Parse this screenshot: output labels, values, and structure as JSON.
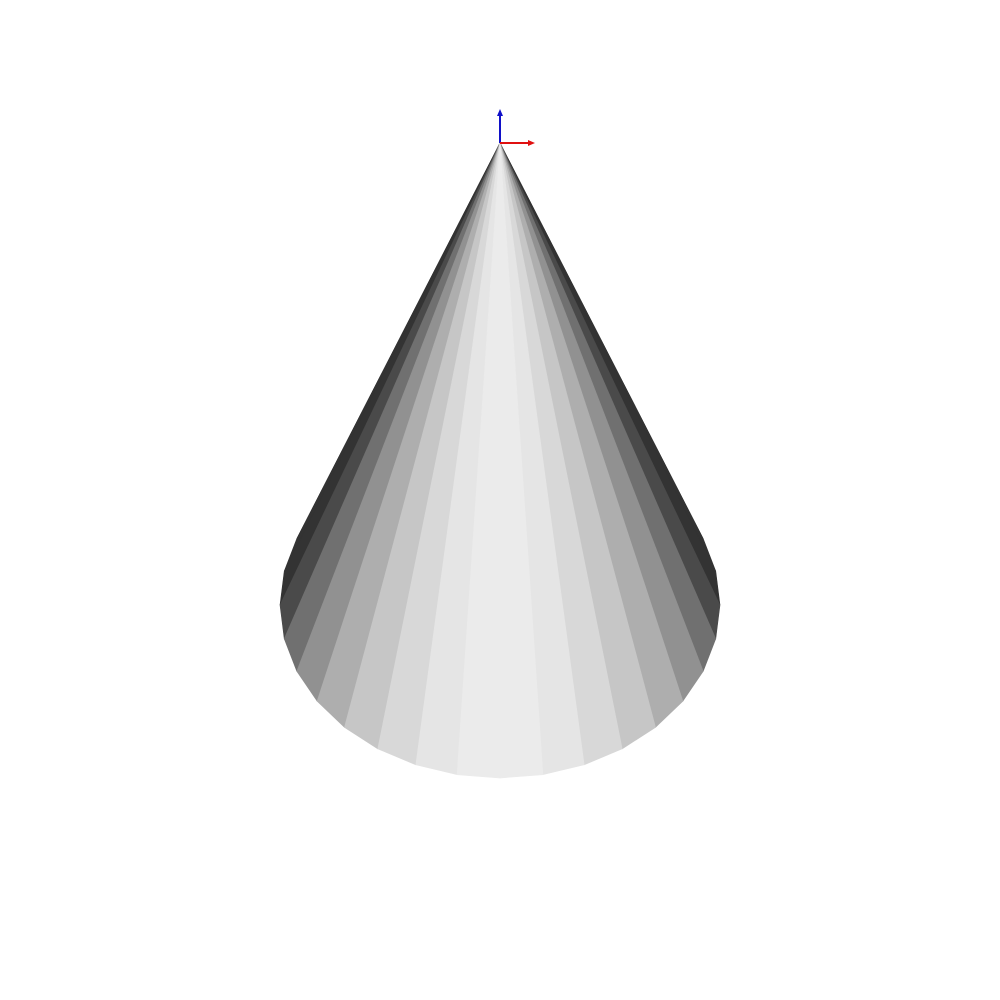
{
  "scene": {
    "object": "cone",
    "facet_count": 32,
    "background_color": "#ffffff",
    "facet_shade_light": "#ececec",
    "facet_shade_dark": "#333333",
    "axes": {
      "x_axis_color": "#e01010",
      "z_axis_color": "#1010c8"
    }
  }
}
